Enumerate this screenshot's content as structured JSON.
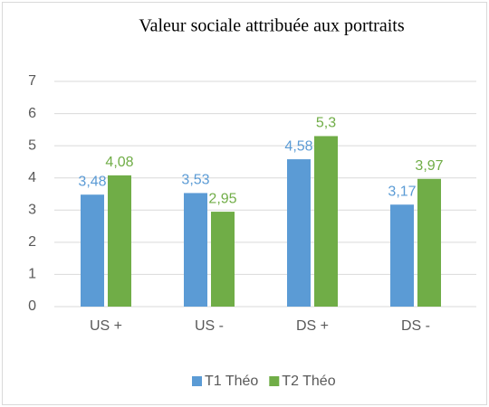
{
  "chart_data": {
    "type": "bar",
    "title": "Valeur sociale attribuée aux portraits",
    "categories": [
      "US +",
      "US -",
      "DS +",
      "DS -"
    ],
    "series": [
      {
        "name": "T1 Théo",
        "color": "#5b9bd5",
        "values": [
          3.48,
          3.53,
          4.58,
          3.17
        ],
        "value_labels": [
          "3,48",
          "3,53",
          "4,58",
          "3,17"
        ]
      },
      {
        "name": "T2 Théo",
        "color": "#70ad47",
        "values": [
          4.08,
          2.95,
          5.3,
          3.97
        ],
        "value_labels": [
          "4,08",
          "2,95",
          "5,3",
          "3,97"
        ]
      }
    ],
    "ylim": [
      0,
      7
    ],
    "yticks": [
      0,
      1,
      2,
      3,
      4,
      5,
      6,
      7
    ],
    "grid": true,
    "legend": "bottom"
  }
}
